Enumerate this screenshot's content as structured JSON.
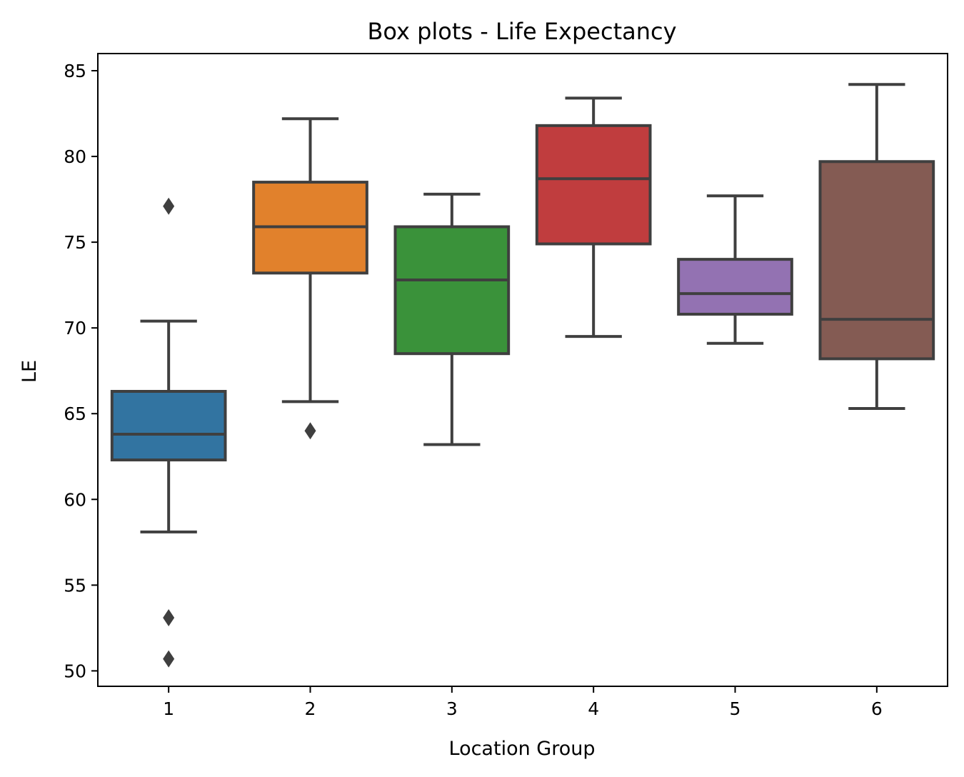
{
  "chart_data": {
    "type": "box",
    "title": "Box plots - Life Expectancy",
    "xlabel": "Location Group",
    "ylabel": "LE",
    "categories": [
      "1",
      "2",
      "3",
      "4",
      "5",
      "6"
    ],
    "ylim": [
      49.1,
      86.0
    ],
    "yticks": [
      50,
      55,
      60,
      65,
      70,
      75,
      80,
      85
    ],
    "ytick_labels": [
      "50",
      "55",
      "60",
      "65",
      "70",
      "75",
      "80",
      "85"
    ],
    "grid": false,
    "boxes": [
      {
        "category": "1",
        "whisker_low": 58.1,
        "q1": 62.3,
        "median": 63.8,
        "q3": 66.3,
        "whisker_high": 70.4,
        "outliers": [
          77.1,
          53.1,
          50.7
        ],
        "color": "#3274a1"
      },
      {
        "category": "2",
        "whisker_low": 65.7,
        "q1": 73.2,
        "median": 75.9,
        "q3": 78.5,
        "whisker_high": 82.2,
        "outliers": [
          64.0
        ],
        "color": "#e1812c"
      },
      {
        "category": "3",
        "whisker_low": 63.2,
        "q1": 68.5,
        "median": 72.8,
        "q3": 75.9,
        "whisker_high": 77.8,
        "outliers": [],
        "color": "#3a923a"
      },
      {
        "category": "4",
        "whisker_low": 69.5,
        "q1": 74.9,
        "median": 78.7,
        "q3": 81.8,
        "whisker_high": 83.4,
        "outliers": [],
        "color": "#c03d3e"
      },
      {
        "category": "5",
        "whisker_low": 69.1,
        "q1": 70.8,
        "median": 72.0,
        "q3": 74.0,
        "whisker_high": 77.7,
        "outliers": [],
        "color": "#9372b2"
      },
      {
        "category": "6",
        "whisker_low": 65.3,
        "q1": 68.2,
        "median": 70.5,
        "q3": 79.7,
        "whisker_high": 84.2,
        "outliers": [],
        "color": "#845b53"
      }
    ],
    "box_edge_color": "#3f3f3f"
  }
}
